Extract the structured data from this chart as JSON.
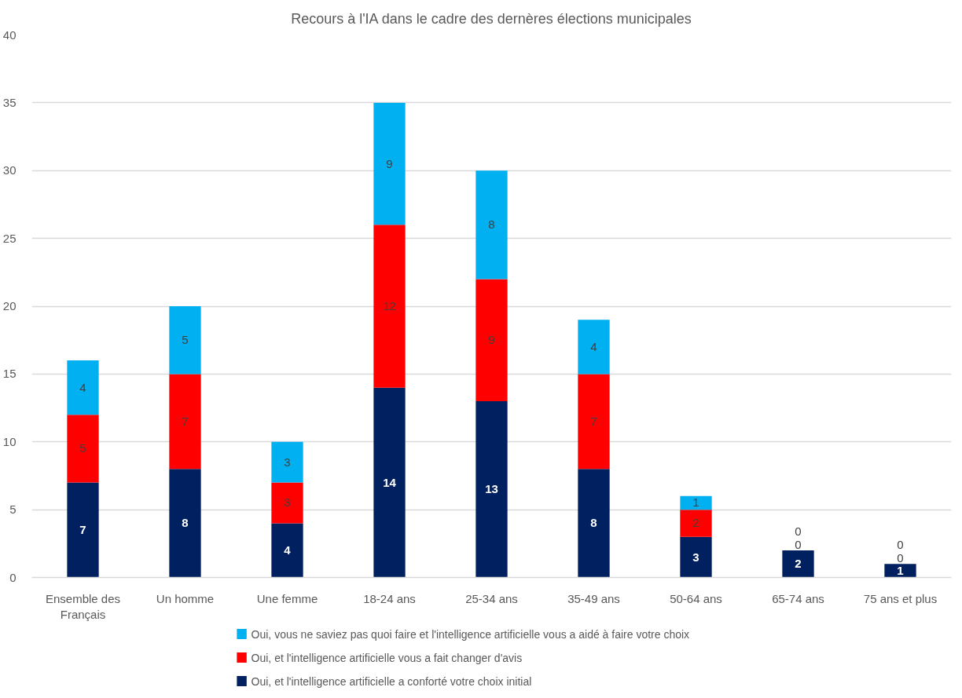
{
  "chart_data": {
    "type": "bar",
    "title": "Recours à l'IA dans le cadre des dernères élections municipales",
    "categories": [
      "Ensemble des Français",
      "Un homme",
      "Une femme",
      "18-24 ans",
      "25-34 ans",
      "35-49 ans",
      "50-64 ans",
      "65-74 ans",
      "75 ans et plus"
    ],
    "stacked": true,
    "series": [
      {
        "name": "Oui, et l'intelligence artificielle a conforté votre choix initial",
        "color": "#002060",
        "values": [
          7,
          8,
          4,
          14,
          13,
          8,
          3,
          2,
          1
        ]
      },
      {
        "name": "Oui, et l'intelligence artificielle vous a fait changer d'avis",
        "color": "#ff0000",
        "values": [
          5,
          7,
          3,
          12,
          9,
          7,
          2,
          0,
          0
        ]
      },
      {
        "name": "Oui, vous ne saviez pas quoi faire et l'intelligence artificielle vous a aidé à faire votre choix",
        "color": "#00b0f0",
        "values": [
          4,
          5,
          3,
          9,
          8,
          4,
          1,
          0,
          0
        ]
      }
    ],
    "ylim": [
      0,
      40
    ],
    "yticks": [
      0,
      5,
      10,
      15,
      20,
      25,
      30,
      35,
      40
    ],
    "grid": "y",
    "legend": "bottom",
    "data_labels": true
  }
}
